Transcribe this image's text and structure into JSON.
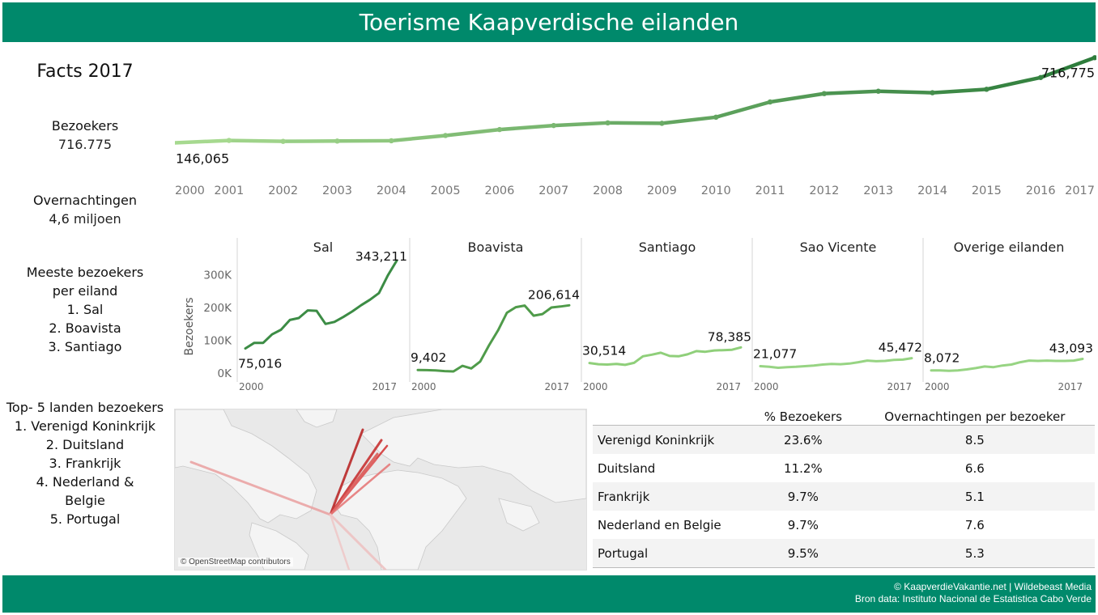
{
  "header": {
    "title": "Toerisme Kaapverdische eilanden"
  },
  "sidebar": {
    "title": "Facts 2017",
    "visitors_label": "Bezoekers",
    "visitors_value": "716.775",
    "nights_label": "Overnachtingen",
    "nights_value": "4,6 miljoen",
    "islands_label_1": "Meeste bezoekers",
    "islands_label_2": "per eiland",
    "islands": [
      "1. Sal",
      "2. Boavista",
      "3. Santiago"
    ],
    "countries_label": "Top- 5 landen bezoekers",
    "countries": [
      "1. Verenigd Koninkrijk",
      "2. Duitsland",
      "3. Frankrijk",
      "4. Nederland &",
      "Belgie",
      "5. Portugal"
    ]
  },
  "chart_data": [
    {
      "type": "line",
      "title": "",
      "x": [
        "2000",
        "2001",
        "2002",
        "2003",
        "2004",
        "2005",
        "2006",
        "2007",
        "2008",
        "2009",
        "2010",
        "2011",
        "2012",
        "2013",
        "2014",
        "2015",
        "2016",
        "2017"
      ],
      "values": [
        146065,
        162000,
        156000,
        158000,
        160000,
        195000,
        235000,
        262000,
        280000,
        277000,
        318000,
        420000,
        476000,
        492000,
        482000,
        505000,
        584000,
        716775
      ],
      "data_labels": {
        "first": "146,065",
        "last": "716,775"
      },
      "colors": {
        "start": "#a6d98f",
        "end": "#2e7d3c"
      }
    },
    {
      "type": "line",
      "ylabel": "Bezoekers",
      "yticks": [
        "0K",
        "100K",
        "200K",
        "300K"
      ],
      "ylim": [
        0,
        343211
      ],
      "x_start": "2000",
      "x_end": "2017",
      "series": [
        {
          "name": "Sal",
          "values": [
            75016,
            92000,
            92000,
            118000,
            132000,
            162000,
            168000,
            191000,
            190000,
            150000,
            156000,
            171000,
            188000,
            207000,
            224000,
            244000,
            298000,
            343211
          ],
          "label_first": "75,016",
          "label_last": "343,211",
          "color": "#3c8c45"
        },
        {
          "name": "Boavista",
          "values": [
            9402,
            9000,
            8000,
            6000,
            5000,
            22000,
            14000,
            35000,
            85000,
            130000,
            184000,
            201000,
            206000,
            175000,
            180000,
            200000,
            203000,
            206614
          ],
          "label_first": "9,402",
          "label_last": "206,614",
          "color": "#4f9b4a"
        },
        {
          "name": "Santiago",
          "values": [
            30514,
            27000,
            26000,
            28000,
            25000,
            31000,
            51000,
            56000,
            62000,
            52000,
            51000,
            57000,
            67000,
            65000,
            69000,
            70000,
            71000,
            78385
          ],
          "label_first": "30,514",
          "label_last": "78,385",
          "color": "#8fcf7a"
        },
        {
          "name": "Sao Vicente",
          "values": [
            21077,
            19000,
            16000,
            18000,
            19000,
            21000,
            23000,
            26000,
            28000,
            27000,
            29000,
            33000,
            38000,
            36000,
            37000,
            40000,
            41000,
            45472
          ],
          "label_first": "21,077",
          "label_last": "45,472",
          "color": "#97d483"
        },
        {
          "name": "Overige eilanden",
          "values": [
            8072,
            8000,
            7000,
            8000,
            11000,
            15000,
            20000,
            18000,
            23000,
            26000,
            33000,
            38000,
            37000,
            38000,
            37000,
            37000,
            38000,
            43093
          ],
          "label_first": "8,072",
          "label_last": "43,093",
          "color": "#97d483"
        }
      ]
    },
    {
      "type": "table",
      "columns": [
        "",
        "% Bezoekers",
        "Overnachtingen per bezoeker"
      ],
      "rows": [
        [
          "Verenigd Koninkrijk",
          "23.6%",
          "8.5"
        ],
        [
          "Duitsland",
          "11.2%",
          "6.6"
        ],
        [
          "Frankrijk",
          "9.7%",
          "5.1"
        ],
        [
          "Nederland en Belgie",
          "9.7%",
          "7.6"
        ],
        [
          "Portugal",
          "9.5%",
          "5.3"
        ]
      ]
    }
  ],
  "map": {
    "attribution": "© OpenStreetMap contributors"
  },
  "footer": {
    "line1": "© KaapverdieVakantie.net | Wildebeast Media",
    "line2": "Bron data: Instituto Nacional de Estatistica Cabo Verde"
  }
}
